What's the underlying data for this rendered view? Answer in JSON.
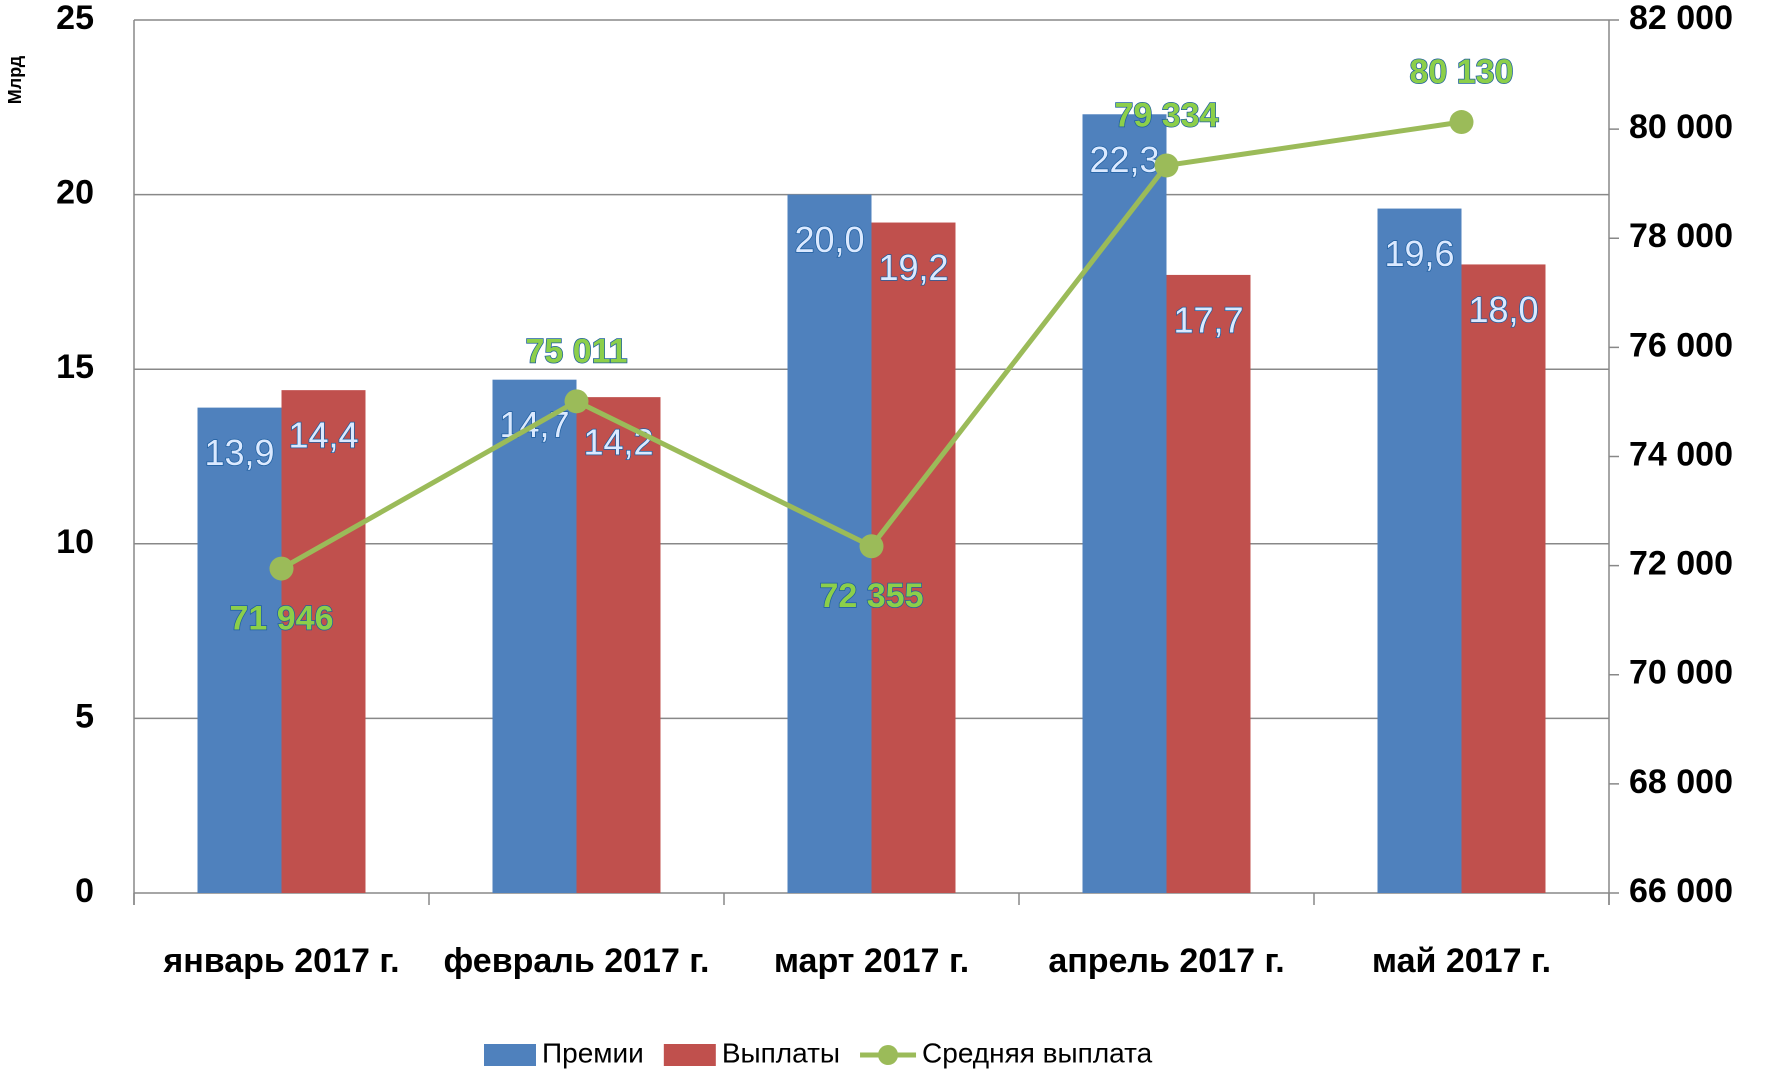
{
  "chart_data": {
    "type": "bar",
    "y_label": "Млрд",
    "categories": [
      "январь 2017 г.",
      "февраль 2017 г.",
      "март 2017 г.",
      "апрель 2017 г.",
      "май 2017 г."
    ],
    "series": [
      {
        "name": "Премии",
        "color": "#4f81bd",
        "values": [
          13.9,
          14.7,
          20.0,
          22.3,
          19.6
        ],
        "value_labels": [
          "13,9",
          "14,7",
          "20,0",
          "22,3",
          "19,6"
        ]
      },
      {
        "name": "Выплаты",
        "color": "#c0504d",
        "values": [
          14.4,
          14.2,
          19.2,
          17.7,
          18.0
        ],
        "value_labels": [
          "14,4",
          "14,2",
          "19,2",
          "17,7",
          "18,0"
        ]
      },
      {
        "name": "Средняя выплата",
        "color": "#9bbb59",
        "type": "line",
        "axis": "y2",
        "values": [
          71946,
          75011,
          72355,
          79334,
          80130
        ],
        "value_labels": [
          "71 946",
          "75 011",
          "72 355",
          "79 334",
          "80 130"
        ]
      }
    ],
    "ylim": [
      0,
      25
    ],
    "yticks": [
      0,
      5,
      10,
      15,
      20,
      25
    ],
    "y2lim": [
      66000,
      82000
    ],
    "y2ticks": [
      {
        "value": 66000,
        "label": "66 000"
      },
      {
        "value": 68000,
        "label": "68 000"
      },
      {
        "value": 70000,
        "label": "70 000"
      },
      {
        "value": 72000,
        "label": "72 000"
      },
      {
        "value": 74000,
        "label": "74 000"
      },
      {
        "value": 76000,
        "label": "76 000"
      },
      {
        "value": 78000,
        "label": "78 000"
      },
      {
        "value": 80000,
        "label": "80 000"
      },
      {
        "value": 82000,
        "label": "82 000"
      }
    ],
    "grid": true,
    "legend": "bottom"
  }
}
